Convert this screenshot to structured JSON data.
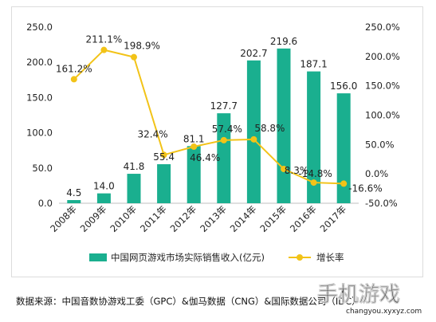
{
  "chart_data": {
    "type": "bar",
    "categories": [
      "2008年",
      "2009年",
      "2010年",
      "2011年",
      "2012年",
      "2013年",
      "2014年",
      "2015年",
      "2016年",
      "2017年"
    ],
    "series": [
      {
        "name": "中国网页游戏市场实际销售收入(亿元)",
        "type": "bar",
        "axis": "left",
        "values": [
          4.5,
          14.0,
          41.8,
          55.4,
          81.1,
          127.7,
          202.7,
          219.6,
          187.1,
          156.0
        ],
        "labels": [
          "4.5",
          "14.0",
          "41.8",
          "55.4",
          "81.1",
          "127.7",
          "202.7",
          "219.6",
          "187.1",
          "156.0"
        ],
        "color": "#1aaf8f"
      },
      {
        "name": "增长率",
        "type": "line",
        "axis": "right",
        "values": [
          161.2,
          211.1,
          198.9,
          32.4,
          46.4,
          57.4,
          58.8,
          8.3,
          -14.8,
          -16.6
        ],
        "labels": [
          "161.2%",
          "211.1%",
          "198.9%",
          "32.4%",
          "46.4%",
          "57.4%",
          "58.8%",
          "8.3%",
          "-14.8%",
          "-16.6%"
        ],
        "color": "#f2c318"
      }
    ],
    "left_axis": {
      "ylim": [
        0,
        250
      ],
      "ticks": [
        0,
        50,
        100,
        150,
        200,
        250
      ],
      "tick_labels": [
        "0.0",
        "50.0",
        "100.0",
        "150.0",
        "200.0",
        "250.0"
      ]
    },
    "right_axis": {
      "ylim": [
        -50,
        250
      ],
      "ticks": [
        -50,
        0,
        50,
        100,
        150,
        200,
        250
      ],
      "tick_labels": [
        "-50.0%",
        "0.0%",
        "50.0%",
        "100.0%",
        "150.0%",
        "200.0%",
        "250.0%"
      ]
    },
    "grid": false,
    "legend_position": "bottom",
    "xlabel": "",
    "ylabel": ""
  },
  "source": "数据来源：中国音数协游戏工委（GPC）&伽马数据（CNG）&国际数据公司（IDC）",
  "watermark": {
    "text": "手机游戏",
    "url": "changyou.xyxyz.com"
  }
}
